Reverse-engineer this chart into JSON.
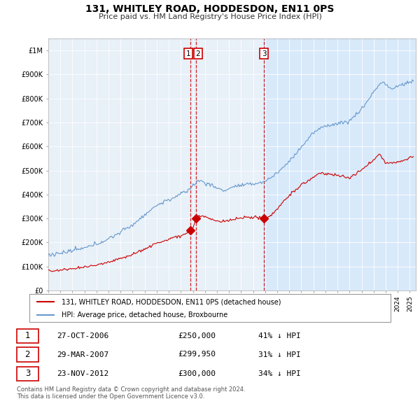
{
  "title": "131, WHITLEY ROAD, HODDESDON, EN11 0PS",
  "subtitle": "Price paid vs. HM Land Registry's House Price Index (HPI)",
  "legend_line1": "131, WHITLEY ROAD, HODDESDON, EN11 0PS (detached house)",
  "legend_line2": "HPI: Average price, detached house, Broxbourne",
  "red_color": "#cc0000",
  "blue_color": "#6699cc",
  "blue_fill": "#ddeeff",
  "plot_bg_color": "#e8f0f8",
  "grid_color": "#ffffff",
  "table_rows": [
    {
      "num": "1",
      "date": "27-OCT-2006",
      "price": "£250,000",
      "hpi": "41% ↓ HPI"
    },
    {
      "num": "2",
      "date": "29-MAR-2007",
      "price": "£299,950",
      "hpi": "31% ↓ HPI"
    },
    {
      "num": "3",
      "date": "23-NOV-2012",
      "price": "£300,000",
      "hpi": "34% ↓ HPI"
    }
  ],
  "vline1_year": 2007.0,
  "vline2_year": 2012.9,
  "sale1_year": 2006.82,
  "sale1_price": 250000,
  "sale2_year": 2007.24,
  "sale2_price": 299950,
  "sale3_year": 2012.9,
  "sale3_price": 300000,
  "footer": "Contains HM Land Registry data © Crown copyright and database right 2024.\nThis data is licensed under the Open Government Licence v3.0.",
  "ylim_max": 1050000,
  "xmin": 1995.0,
  "xmax": 2025.5
}
